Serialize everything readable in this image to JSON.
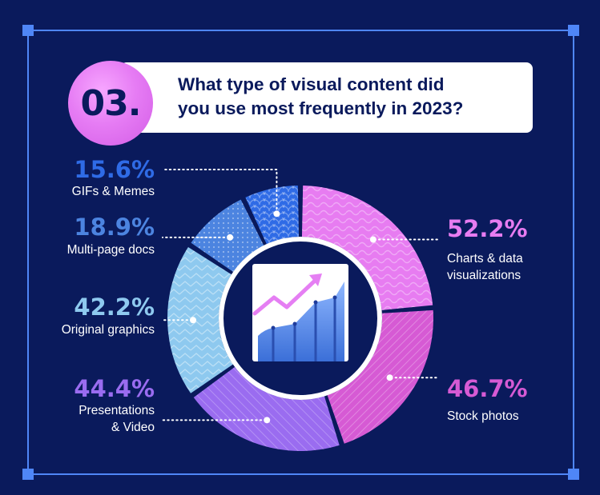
{
  "question": {
    "number": "03.",
    "line1": "What type of visual content did",
    "line2": "you use most frequently in 2023?"
  },
  "colors": {
    "background": "#0a1a5c",
    "frame": "#4f86f7",
    "charts": "#e77cf1",
    "stock": "#d65ad4",
    "presentations": "#9a6cf0",
    "original": "#8ec9ef",
    "multipage": "#4c84e0",
    "gifs": "#2f6be6"
  },
  "chart_data": {
    "type": "pie",
    "title": "What type of visual content did you use most frequently in 2023?",
    "categories": [
      "Charts & data visualizations",
      "Stock photos",
      "Presentations & Video",
      "Original graphics",
      "Multi-page docs",
      "GIFs & Memes"
    ],
    "values": [
      52.2,
      46.7,
      44.4,
      42.2,
      18.9,
      15.6
    ],
    "value_labels": [
      "52.2%",
      "46.7%",
      "44.4%",
      "42.2%",
      "18.9%",
      "15.6%"
    ],
    "label_lines": [
      [
        "Charts & data",
        "visualizations"
      ],
      [
        "Stock photos"
      ],
      [
        "Presentations",
        "& Video"
      ],
      [
        "Original graphics"
      ],
      [
        "Multi-page docs"
      ],
      [
        "GIFs & Memes"
      ]
    ],
    "unit": "%",
    "donut": true
  }
}
